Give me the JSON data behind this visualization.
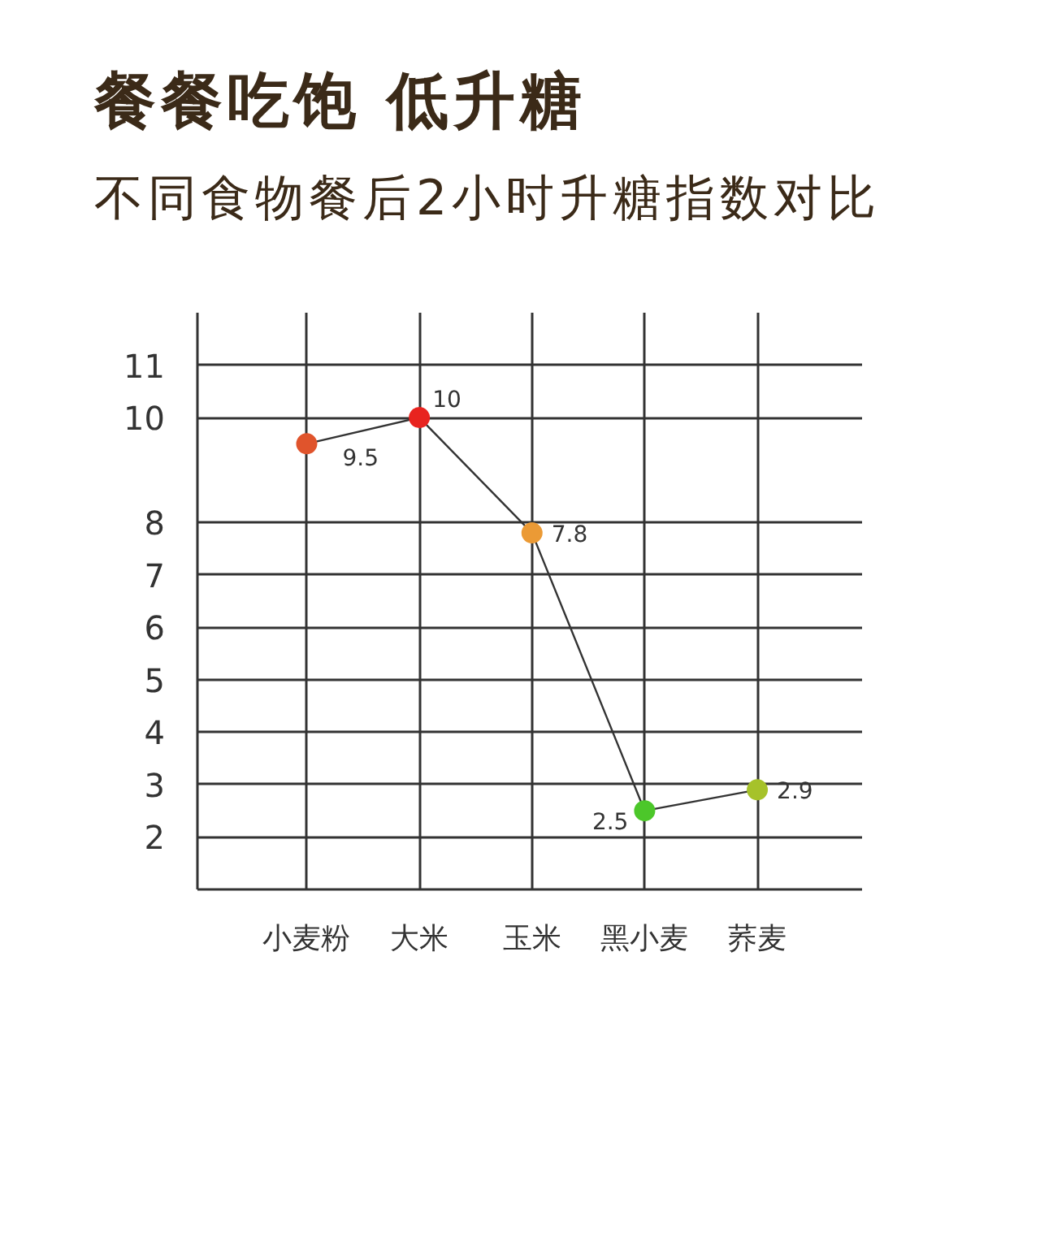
{
  "chart_data": {
    "type": "line",
    "title": "餐餐吃饱 低升糖",
    "subtitle": "不同食物餐后2小时升糖指数对比",
    "categories": [
      "小麦粉",
      "大米",
      "玉米",
      "黑小麦",
      "荞麦"
    ],
    "series": [
      {
        "color": "#333333",
        "colors": [
          "#e0542c",
          "#e8231f",
          "#eb9a35",
          "#4cc72a",
          "#a6c22a"
        ],
        "values": [
          9.5,
          10,
          7.8,
          2.5,
          2.9
        ]
      }
    ],
    "ylim": [
      1,
      12
    ],
    "yticks": [
      2,
      3,
      4,
      5,
      6,
      7,
      8,
      10,
      11
    ],
    "grid": true,
    "marker": "circle",
    "line_style": "solid",
    "data_labels": true
  }
}
